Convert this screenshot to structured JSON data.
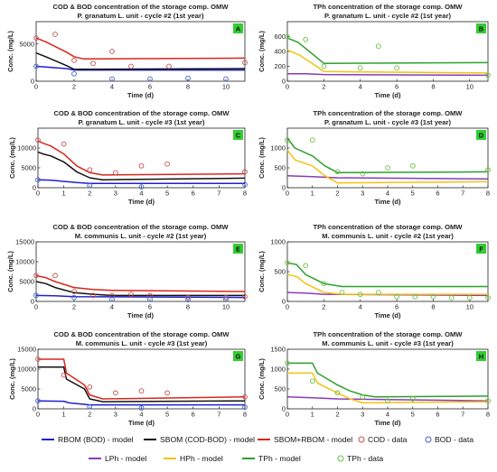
{
  "legend_bottom": [
    [
      {
        "label": "RBOM (BOD) - model",
        "color": "#1f1fd0",
        "kind": "line"
      },
      {
        "label": "SBOM (COD-BOD) - model",
        "color": "#111111",
        "kind": "line"
      },
      {
        "label": "SBOM+RBOM - model",
        "color": "#d9261c",
        "kind": "line"
      },
      {
        "label": "COD - data",
        "color": "#c0504d",
        "kind": "marker"
      },
      {
        "label": "BOD - data",
        "color": "#3b5fd0",
        "kind": "marker"
      }
    ],
    [
      {
        "label": "LPh - model",
        "color": "#8a3ab9",
        "kind": "line"
      },
      {
        "label": "HPh - model",
        "color": "#f4c20d",
        "kind": "line"
      },
      {
        "label": "TPh - model",
        "color": "#2ca02c",
        "kind": "line"
      },
      {
        "label": "TPh - data",
        "color": "#6abf40",
        "kind": "marker"
      }
    ]
  ],
  "chart_data": [
    {
      "type": "line",
      "panel": "A",
      "title": "COD & BOD concentration of the storage comp. OMW",
      "subtitle": "P. granatum L. unit - cycle #2 (1st year)",
      "xlabel": "Time (d)",
      "ylabel": "Conc. (mg/L)",
      "xlim": [
        0,
        11
      ],
      "ylim": [
        0,
        8000
      ],
      "xticks": [
        0,
        2,
        4,
        6,
        8,
        10
      ],
      "yticks": [
        0,
        5000
      ],
      "series": [
        {
          "color": "#1f1fd0",
          "x": [
            0,
            0.5,
            1.6,
            2,
            11
          ],
          "y": [
            2000,
            1900,
            1700,
            1500,
            1500
          ]
        },
        {
          "color": "#111111",
          "x": [
            0,
            0.5,
            1.6,
            2,
            11
          ],
          "y": [
            3800,
            3300,
            2100,
            1600,
            1700
          ]
        },
        {
          "color": "#d9261c",
          "x": [
            0,
            0.5,
            1.6,
            2,
            2.5,
            11
          ],
          "y": [
            5800,
            5300,
            3900,
            3300,
            3000,
            3100
          ]
        }
      ],
      "points": [
        {
          "color": "#c0504d",
          "x": [
            0,
            1,
            2,
            3,
            4,
            5,
            7,
            11
          ],
          "y": [
            5800,
            6300,
            2800,
            2400,
            4000,
            2000,
            2000,
            2500
          ]
        },
        {
          "color": "#3b5fd0",
          "x": [
            0,
            2,
            4,
            6,
            8,
            10
          ],
          "y": [
            2000,
            1000,
            300,
            300,
            400,
            300
          ]
        }
      ]
    },
    {
      "type": "line",
      "panel": "B",
      "title": "TPh concentration of the storage comp. OMW",
      "subtitle": "P. granatum L. unit - cycle #2 (1st year)",
      "xlabel": "Time (d)",
      "ylabel": "Conc. (mg/L)",
      "xlim": [
        0,
        11
      ],
      "ylim": [
        0,
        800
      ],
      "xticks": [
        0,
        2,
        4,
        6,
        8,
        10
      ],
      "yticks": [
        0,
        200,
        400,
        600
      ],
      "series": [
        {
          "color": "#8a3ab9",
          "x": [
            0,
            1,
            2,
            11
          ],
          "y": [
            100,
            100,
            90,
            80
          ]
        },
        {
          "color": "#f4c20d",
          "x": [
            0,
            0.6,
            1.6,
            2,
            11
          ],
          "y": [
            420,
            360,
            200,
            130,
            110
          ]
        },
        {
          "color": "#2ca02c",
          "x": [
            0,
            0.6,
            1.6,
            2,
            11
          ],
          "y": [
            580,
            520,
            320,
            240,
            250
          ]
        }
      ],
      "points": [
        {
          "color": "#6abf40",
          "x": [
            0,
            1,
            2,
            4,
            5,
            6,
            11
          ],
          "y": [
            600,
            560,
            200,
            180,
            470,
            180,
            80
          ]
        }
      ]
    },
    {
      "type": "line",
      "panel": "C",
      "title": "COD & BOD concentration of the storage comp. OMW",
      "subtitle": "P. granatum L. unit - cycle #3 (1st year)",
      "xlabel": "Time (d)",
      "ylabel": "Conc. (mg/L)",
      "xlim": [
        0,
        8
      ],
      "ylim": [
        0,
        15000
      ],
      "xticks": [
        0,
        1,
        2,
        3,
        4,
        5,
        6,
        7,
        8
      ],
      "yticks": [
        0,
        5000,
        10000
      ],
      "series": [
        {
          "color": "#1f1fd0",
          "x": [
            0,
            0.5,
            1,
            1.5,
            2,
            8
          ],
          "y": [
            2000,
            1900,
            1600,
            1300,
            1100,
            1100
          ]
        },
        {
          "color": "#111111",
          "x": [
            0,
            0.2,
            0.5,
            1,
            1.5,
            2,
            2.5,
            8
          ],
          "y": [
            9000,
            8500,
            8000,
            6500,
            4000,
            2500,
            2000,
            2400
          ]
        },
        {
          "color": "#d9261c",
          "x": [
            0,
            0.2,
            0.5,
            1,
            1.5,
            2,
            2.5,
            8
          ],
          "y": [
            11800,
            11200,
            10500,
            8500,
            5500,
            3800,
            3200,
            3500
          ]
        }
      ],
      "points": [
        {
          "color": "#c0504d",
          "x": [
            0,
            1,
            2,
            3,
            4,
            5,
            8
          ],
          "y": [
            12000,
            11000,
            4500,
            3800,
            5500,
            6000,
            4000
          ]
        },
        {
          "color": "#3b5fd0",
          "x": [
            0,
            2,
            4,
            8
          ],
          "y": [
            2000,
            500,
            200,
            800
          ]
        }
      ]
    },
    {
      "type": "line",
      "panel": "D",
      "title": "TPh concentration of the storage comp. OMW",
      "subtitle": "P. granatum L. unit - cycle #3 (1st year)",
      "xlabel": "Time (d)",
      "ylabel": "Conc. (mg/L)",
      "xlim": [
        0,
        8
      ],
      "ylim": [
        0,
        1500
      ],
      "xticks": [
        0,
        1,
        2,
        3,
        4,
        5,
        6,
        7,
        8
      ],
      "yticks": [
        0,
        500,
        1000
      ],
      "series": [
        {
          "color": "#8a3ab9",
          "x": [
            0,
            1,
            2,
            8
          ],
          "y": [
            300,
            280,
            250,
            220
          ]
        },
        {
          "color": "#f4c20d",
          "x": [
            0,
            0.3,
            1,
            1.5,
            2,
            8
          ],
          "y": [
            950,
            700,
            550,
            300,
            120,
            150
          ]
        },
        {
          "color": "#2ca02c",
          "x": [
            0,
            0.3,
            1,
            1.5,
            2,
            8
          ],
          "y": [
            1250,
            1000,
            800,
            550,
            380,
            400
          ]
        }
      ],
      "points": [
        {
          "color": "#6abf40",
          "x": [
            0,
            1,
            2,
            3,
            4,
            5,
            8
          ],
          "y": [
            1200,
            1200,
            400,
            350,
            500,
            550,
            450
          ]
        }
      ]
    },
    {
      "type": "line",
      "panel": "E",
      "title": "COD & BOD concentration of the storage comp. OMW",
      "subtitle": "M. communis L. unit - cycle #2 (1st year)",
      "xlabel": "Time (d)",
      "ylabel": "Conc. (mg/L)",
      "xlim": [
        0,
        11
      ],
      "ylim": [
        0,
        15000
      ],
      "xticks": [
        0,
        2,
        4,
        6,
        8,
        10
      ],
      "yticks": [
        0,
        5000,
        10000,
        15000
      ],
      "series": [
        {
          "color": "#1f1fd0",
          "x": [
            0,
            1,
            2,
            11
          ],
          "y": [
            1500,
            1400,
            1200,
            1000
          ]
        },
        {
          "color": "#111111",
          "x": [
            0,
            0.5,
            1,
            2,
            3,
            4,
            11
          ],
          "y": [
            5000,
            4500,
            3500,
            2200,
            1800,
            1500,
            1500
          ]
        },
        {
          "color": "#d9261c",
          "x": [
            0,
            0.5,
            1,
            2,
            3,
            4,
            11
          ],
          "y": [
            6500,
            6000,
            5000,
            3500,
            3000,
            2800,
            2500
          ]
        }
      ],
      "points": [
        {
          "color": "#c0504d",
          "x": [
            0,
            1,
            2,
            3,
            4,
            5,
            6,
            8,
            10,
            11
          ],
          "y": [
            6500,
            6500,
            2500,
            1500,
            1500,
            1800,
            1500,
            1000,
            1000,
            1200
          ]
        },
        {
          "color": "#3b5fd0",
          "x": [
            0,
            2,
            4,
            6,
            8,
            10
          ],
          "y": [
            1500,
            1000,
            500,
            500,
            400,
            500
          ]
        }
      ]
    },
    {
      "type": "line",
      "panel": "F",
      "title": "TPh concentration of the storage comp. OMW",
      "subtitle": "M. communis L. unit - cycle #2 (1st year)",
      "xlabel": "Time (d)",
      "ylabel": "Conc. (mg/L)",
      "xlim": [
        0,
        11
      ],
      "ylim": [
        0,
        1000
      ],
      "xticks": [
        0,
        2,
        4,
        6,
        8,
        10
      ],
      "yticks": [
        0,
        500,
        1000
      ],
      "series": [
        {
          "color": "#8a3ab9",
          "x": [
            0,
            1,
            2,
            11
          ],
          "y": [
            150,
            140,
            120,
            100
          ]
        },
        {
          "color": "#f4c20d",
          "x": [
            0,
            0.5,
            1,
            2,
            3,
            11
          ],
          "y": [
            450,
            420,
            300,
            150,
            120,
            120
          ]
        },
        {
          "color": "#2ca02c",
          "x": [
            0,
            0.5,
            1,
            2,
            3,
            11
          ],
          "y": [
            650,
            620,
            450,
            300,
            250,
            250
          ]
        }
      ],
      "points": [
        {
          "color": "#6abf40",
          "x": [
            0,
            1,
            2,
            3,
            4,
            5,
            6,
            7,
            8,
            9,
            10,
            11
          ],
          "y": [
            650,
            600,
            300,
            150,
            120,
            150,
            80,
            80,
            80,
            60,
            60,
            60
          ]
        }
      ]
    },
    {
      "type": "line",
      "panel": "G",
      "title": "COD & BOD concentration of the storage comp. OMW",
      "subtitle": "M. communis L. unit - cycle #3 (1st year)",
      "xlabel": "Time (d)",
      "ylabel": "Conc. (mg/L)",
      "xlim": [
        0,
        8
      ],
      "ylim": [
        0,
        15000
      ],
      "xticks": [
        0,
        1,
        2,
        3,
        4,
        5,
        6,
        7,
        8
      ],
      "yticks": [
        0,
        5000,
        10000,
        15000
      ],
      "series": [
        {
          "color": "#1f1fd0",
          "x": [
            0,
            1,
            1.2,
            2,
            8
          ],
          "y": [
            2000,
            1900,
            1500,
            1000,
            1000
          ]
        },
        {
          "color": "#111111",
          "x": [
            0,
            1,
            1.1,
            1.8,
            2,
            2.5,
            8
          ],
          "y": [
            10500,
            10500,
            7500,
            5000,
            2500,
            1800,
            2000
          ]
        },
        {
          "color": "#d9261c",
          "x": [
            0,
            1,
            1.1,
            1.8,
            2,
            2.5,
            8
          ],
          "y": [
            12500,
            12500,
            9000,
            6000,
            3500,
            2500,
            3000
          ]
        }
      ],
      "points": [
        {
          "color": "#c0504d",
          "x": [
            0,
            1,
            2,
            3,
            4,
            5,
            8
          ],
          "y": [
            12500,
            8500,
            5500,
            4000,
            4500,
            4000,
            3000
          ]
        },
        {
          "color": "#3b5fd0",
          "x": [
            0,
            2,
            4,
            8
          ],
          "y": [
            2000,
            500,
            200,
            400
          ]
        }
      ]
    },
    {
      "type": "line",
      "panel": "H",
      "title": "TPh concentration of the storage comp. OMW",
      "subtitle": "M. communis L. unit - cycle #3 (1st year)",
      "xlabel": "Time (d)",
      "ylabel": "Conc. (mg/L)",
      "xlim": [
        0,
        8
      ],
      "ylim": [
        0,
        1500
      ],
      "xticks": [
        0,
        1,
        2,
        3,
        4,
        5,
        6,
        7,
        8
      ],
      "yticks": [
        0,
        500,
        1000,
        1500
      ],
      "series": [
        {
          "color": "#8a3ab9",
          "x": [
            0,
            1,
            2,
            8
          ],
          "y": [
            300,
            280,
            250,
            200
          ]
        },
        {
          "color": "#f4c20d",
          "x": [
            0,
            1,
            1.2,
            2,
            2.5,
            3,
            8
          ],
          "y": [
            900,
            900,
            650,
            400,
            250,
            150,
            180
          ]
        },
        {
          "color": "#2ca02c",
          "x": [
            0,
            1,
            1.2,
            2,
            2.5,
            3,
            3.5,
            8
          ],
          "y": [
            1150,
            1150,
            900,
            600,
            450,
            350,
            300,
            320
          ]
        }
      ],
      "points": [
        {
          "color": "#6abf40",
          "x": [
            0,
            1,
            2,
            3,
            4,
            5,
            8
          ],
          "y": [
            1150,
            700,
            400,
            300,
            200,
            250,
            200
          ]
        }
      ]
    }
  ]
}
